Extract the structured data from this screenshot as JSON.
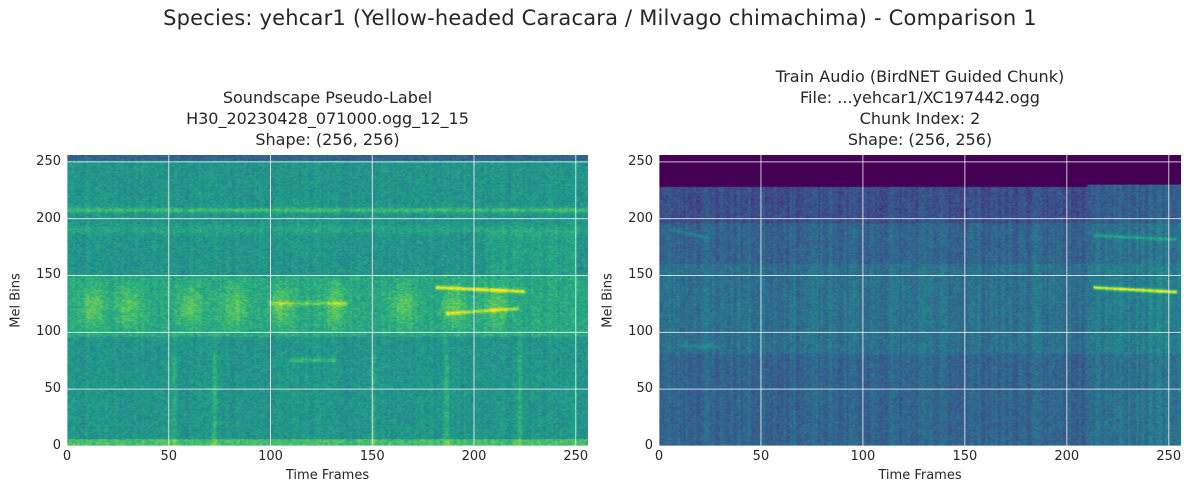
{
  "figure": {
    "suptitle": "Species: yehcar1 (Yellow-headed Caracara / Milvago chimachima) - Comparison 1"
  },
  "chart_data": [
    {
      "type": "heatmap",
      "title_lines": [
        "Soundscape Pseudo-Label",
        "H30_20230428_071000.ogg_12_15",
        "Shape: (256, 256)"
      ],
      "xlabel": "Time Frames",
      "ylabel": "Mel Bins",
      "xlim": [
        0,
        256
      ],
      "ylim": [
        0,
        256
      ],
      "xticks": [
        0,
        50,
        100,
        150,
        200,
        250
      ],
      "yticks": [
        0,
        50,
        100,
        150,
        200,
        250
      ],
      "colormap": "viridis",
      "grid": true,
      "shape": [
        256,
        256
      ]
    },
    {
      "type": "heatmap",
      "title_lines": [
        "Train Audio (BirdNET Guided Chunk)",
        "File: ...yehcar1/XC197442.ogg",
        "Chunk Index: 2",
        "Shape: (256, 256)"
      ],
      "xlabel": "Time Frames",
      "ylabel": "Mel Bins",
      "xlim": [
        0,
        256
      ],
      "ylim": [
        0,
        256
      ],
      "xticks": [
        0,
        50,
        100,
        150,
        200,
        250
      ],
      "yticks": [
        0,
        50,
        100,
        150,
        200,
        250
      ],
      "colormap": "viridis",
      "grid": true,
      "shape": [
        256,
        256
      ]
    }
  ]
}
